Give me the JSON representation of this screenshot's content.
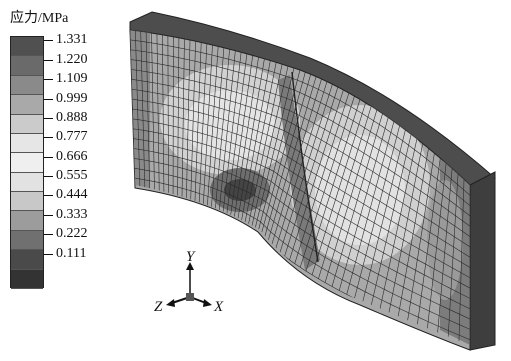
{
  "legend": {
    "title": "应力/MPa",
    "levels": [
      "1.331",
      "1.220",
      "1.109",
      "0.999",
      "0.888",
      "0.777",
      "0.666",
      "0.555",
      "0.444",
      "0.333",
      "0.222",
      "0.111"
    ],
    "swatch_colors": [
      "#505050",
      "#6a6a6a",
      "#8a8a8a",
      "#a9a9a9",
      "#cbcbcb",
      "#e6e6e6",
      "#efefef",
      "#e2e2e2",
      "#c8c8c8",
      "#9c9c9c",
      "#707070",
      "#4a4a4a",
      "#333333"
    ]
  },
  "triad": {
    "y_label": "Y",
    "z_label": "Z",
    "x_label": "X"
  },
  "colors": {
    "face_light": "#c9c9c9",
    "face_mid": "#a6a6a6",
    "face_dark": "#6e6e6e",
    "edge_dark": "#3c3c3c",
    "top_face": "#4d4d4d",
    "mesh_line": "#2a2a2a"
  }
}
